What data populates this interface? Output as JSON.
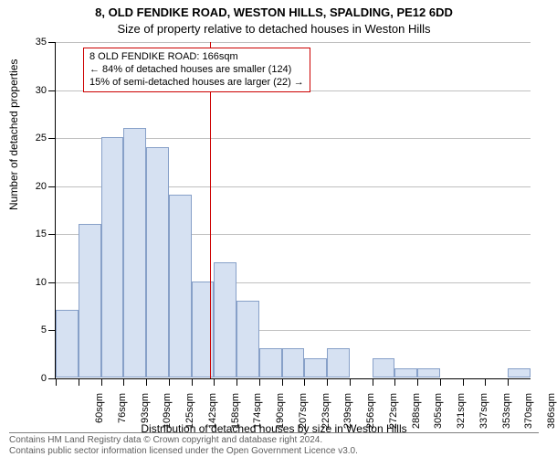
{
  "chart": {
    "type": "histogram",
    "title_main": "8, OLD FENDIKE ROAD, WESTON HILLS, SPALDING, PE12 6DD",
    "title_sub": "Size of property relative to detached houses in Weston Hills",
    "title_fontsize": 13,
    "yaxis": {
      "label": "Number of detached properties",
      "lim": [
        0,
        35
      ],
      "ticks": [
        0,
        5,
        10,
        15,
        20,
        25,
        30,
        35
      ]
    },
    "xaxis": {
      "label": "Distribution of detached houses by size in Weston Hills",
      "ticks": [
        "60sqm",
        "76sqm",
        "93sqm",
        "109sqm",
        "125sqm",
        "142sqm",
        "158sqm",
        "174sqm",
        "190sqm",
        "207sqm",
        "223sqm",
        "239sqm",
        "256sqm",
        "272sqm",
        "288sqm",
        "305sqm",
        "321sqm",
        "337sqm",
        "353sqm",
        "370sqm",
        "386sqm"
      ]
    },
    "bars": {
      "values": [
        7,
        16,
        25,
        26,
        24,
        19,
        10,
        12,
        8,
        3,
        3,
        2,
        3,
        0,
        2,
        1,
        1,
        0,
        0,
        0,
        1
      ],
      "fill_color": "#d6e1f2",
      "border_color": "#87a0c8"
    },
    "marker": {
      "value": "166sqm",
      "fraction_across": 0.325,
      "color": "#cc0000"
    },
    "annotation": {
      "line1": "8 OLD FENDIKE ROAD: 166sqm",
      "line2": "← 84% of detached houses are smaller (124)",
      "line3": "15% of semi-detached houses are larger (22) →",
      "border_color": "#cc0000"
    },
    "gridline_color": "#c0c0c0",
    "background_color": "#ffffff",
    "tick_fontsize": 11,
    "axis_label_fontsize": 12
  },
  "footer": {
    "line1": "Contains HM Land Registry data © Crown copyright and database right 2024.",
    "line2": "Contains public sector information licensed under the Open Government Licence v3.0.",
    "fontsize": 10,
    "color": "#5e5e5e"
  }
}
